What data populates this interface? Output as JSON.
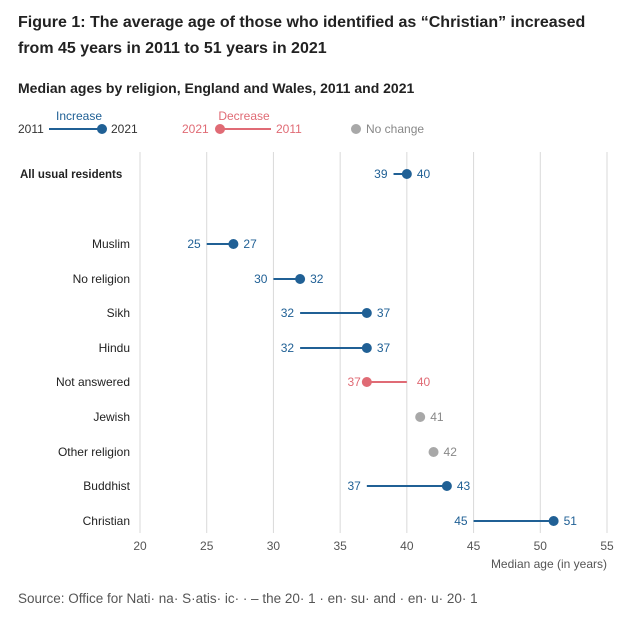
{
  "title": "Figure 1: The average age of those who identified as “Christian” increased from 45 years in 2011 to 51 years in 2021",
  "subtitle": "Median ages by religion, England and Wales, 2011 and 2021",
  "source": "Source: Office for Nati· na· S·atis· ic· · – the 20· 1 · en· su· and · en· u· 20· 1",
  "colors": {
    "increase": "#206095",
    "decrease": "#e06b75",
    "no_change": "#a8a8a8",
    "grid": "#d9d9d9",
    "text": "#222222",
    "axis_text": "#555555"
  },
  "legend": {
    "increase_label": "Increase",
    "increase_from": "2011",
    "increase_to": "2021",
    "decrease_label": "Decrease",
    "decrease_from": "2021",
    "decrease_to": "2011",
    "no_change_label": "No change"
  },
  "chart_data": {
    "type": "dot-plot",
    "title": "Median ages by religion, England and Wales, 2011 and 2021",
    "xlabel": "Median age (in years)",
    "xlim": [
      20,
      55
    ],
    "xticks": [
      20,
      25,
      30,
      35,
      40,
      45,
      50,
      55
    ],
    "series_names": [
      "2011",
      "2021"
    ],
    "rows": [
      {
        "category": "All usual residents",
        "v2011": 39,
        "v2021": 40,
        "bold": true
      },
      {
        "category": "Muslim",
        "v2011": 25,
        "v2021": 27
      },
      {
        "category": "No religion",
        "v2011": 30,
        "v2021": 32
      },
      {
        "category": "Sikh",
        "v2011": 32,
        "v2021": 37
      },
      {
        "category": "Hindu",
        "v2011": 32,
        "v2021": 37
      },
      {
        "category": "Not answered",
        "v2011": 40,
        "v2021": 37
      },
      {
        "category": "Jewish",
        "v2011": 41,
        "v2021": 41
      },
      {
        "category": "Other religion",
        "v2011": 42,
        "v2021": 42
      },
      {
        "category": "Buddhist",
        "v2011": 37,
        "v2021": 43
      },
      {
        "category": "Christian",
        "v2011": 45,
        "v2021": 51
      }
    ]
  }
}
